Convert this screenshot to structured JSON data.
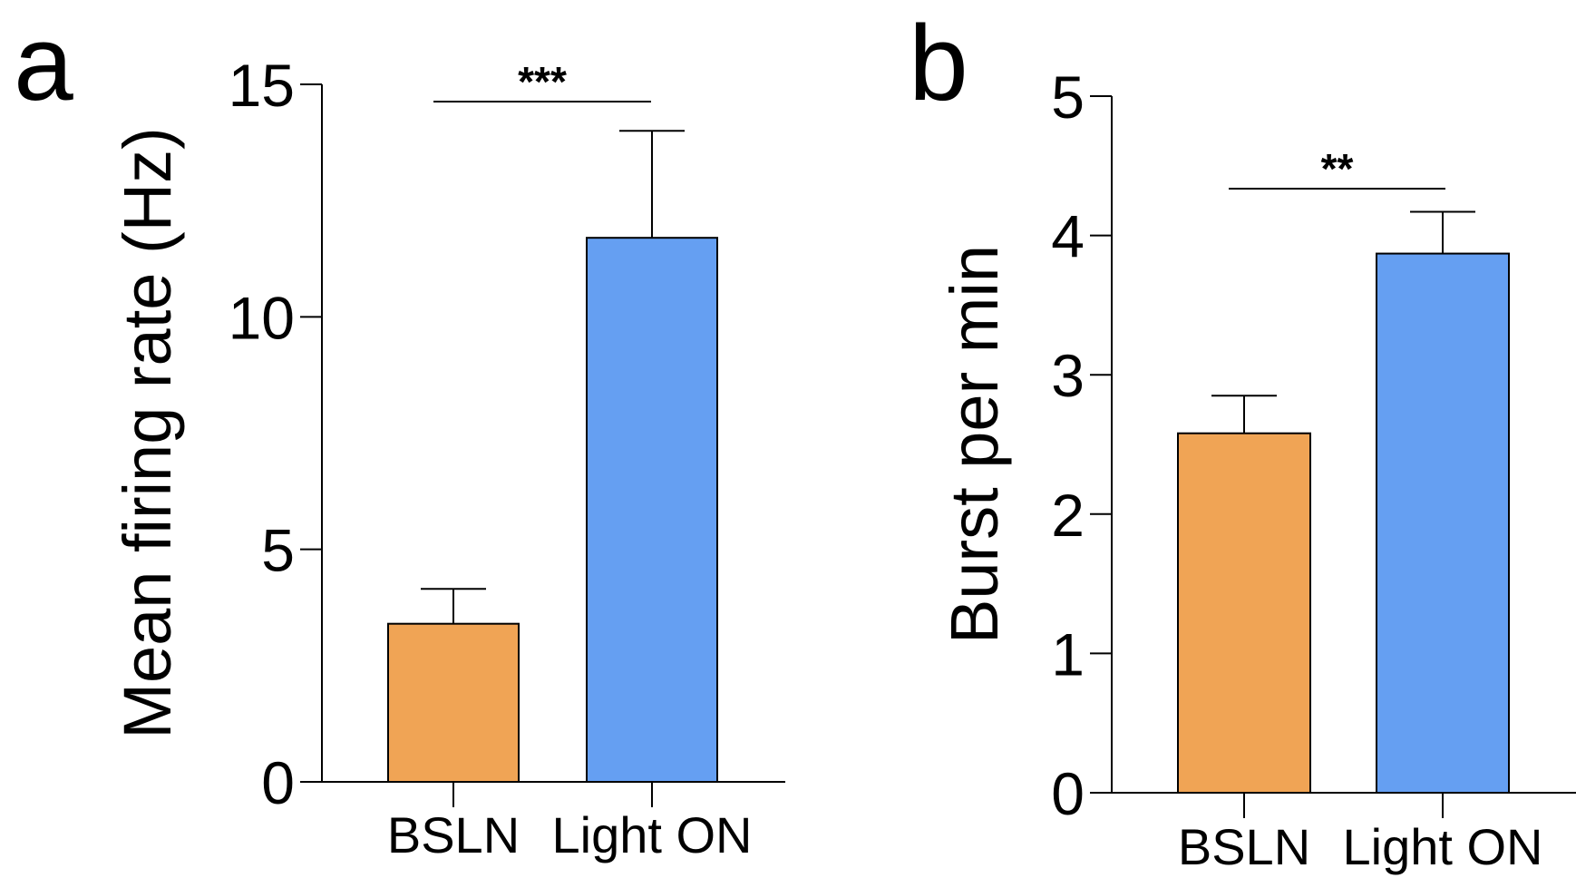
{
  "chart_data": [
    {
      "type": "bar",
      "panel_label": "a",
      "ylabel": "Mean firing rate (Hz)",
      "categories": [
        "BSLN",
        "Light ON"
      ],
      "values": [
        3.4,
        11.7
      ],
      "errors": [
        0.75,
        2.3
      ],
      "ylim": [
        0,
        15
      ],
      "yticks": [
        "0",
        "5",
        "10",
        "15"
      ],
      "colors": [
        "#F0A455",
        "#659FF2"
      ],
      "significance": "***"
    },
    {
      "type": "bar",
      "panel_label": "b",
      "ylabel": "Burst per min",
      "categories": [
        "BSLN",
        "Light ON"
      ],
      "values": [
        2.58,
        3.87
      ],
      "errors": [
        0.27,
        0.3
      ],
      "ylim": [
        0,
        5
      ],
      "yticks": [
        "0",
        "1",
        "2",
        "3",
        "4",
        "5"
      ],
      "colors": [
        "#F0A455",
        "#659FF2"
      ],
      "significance": "**"
    }
  ]
}
